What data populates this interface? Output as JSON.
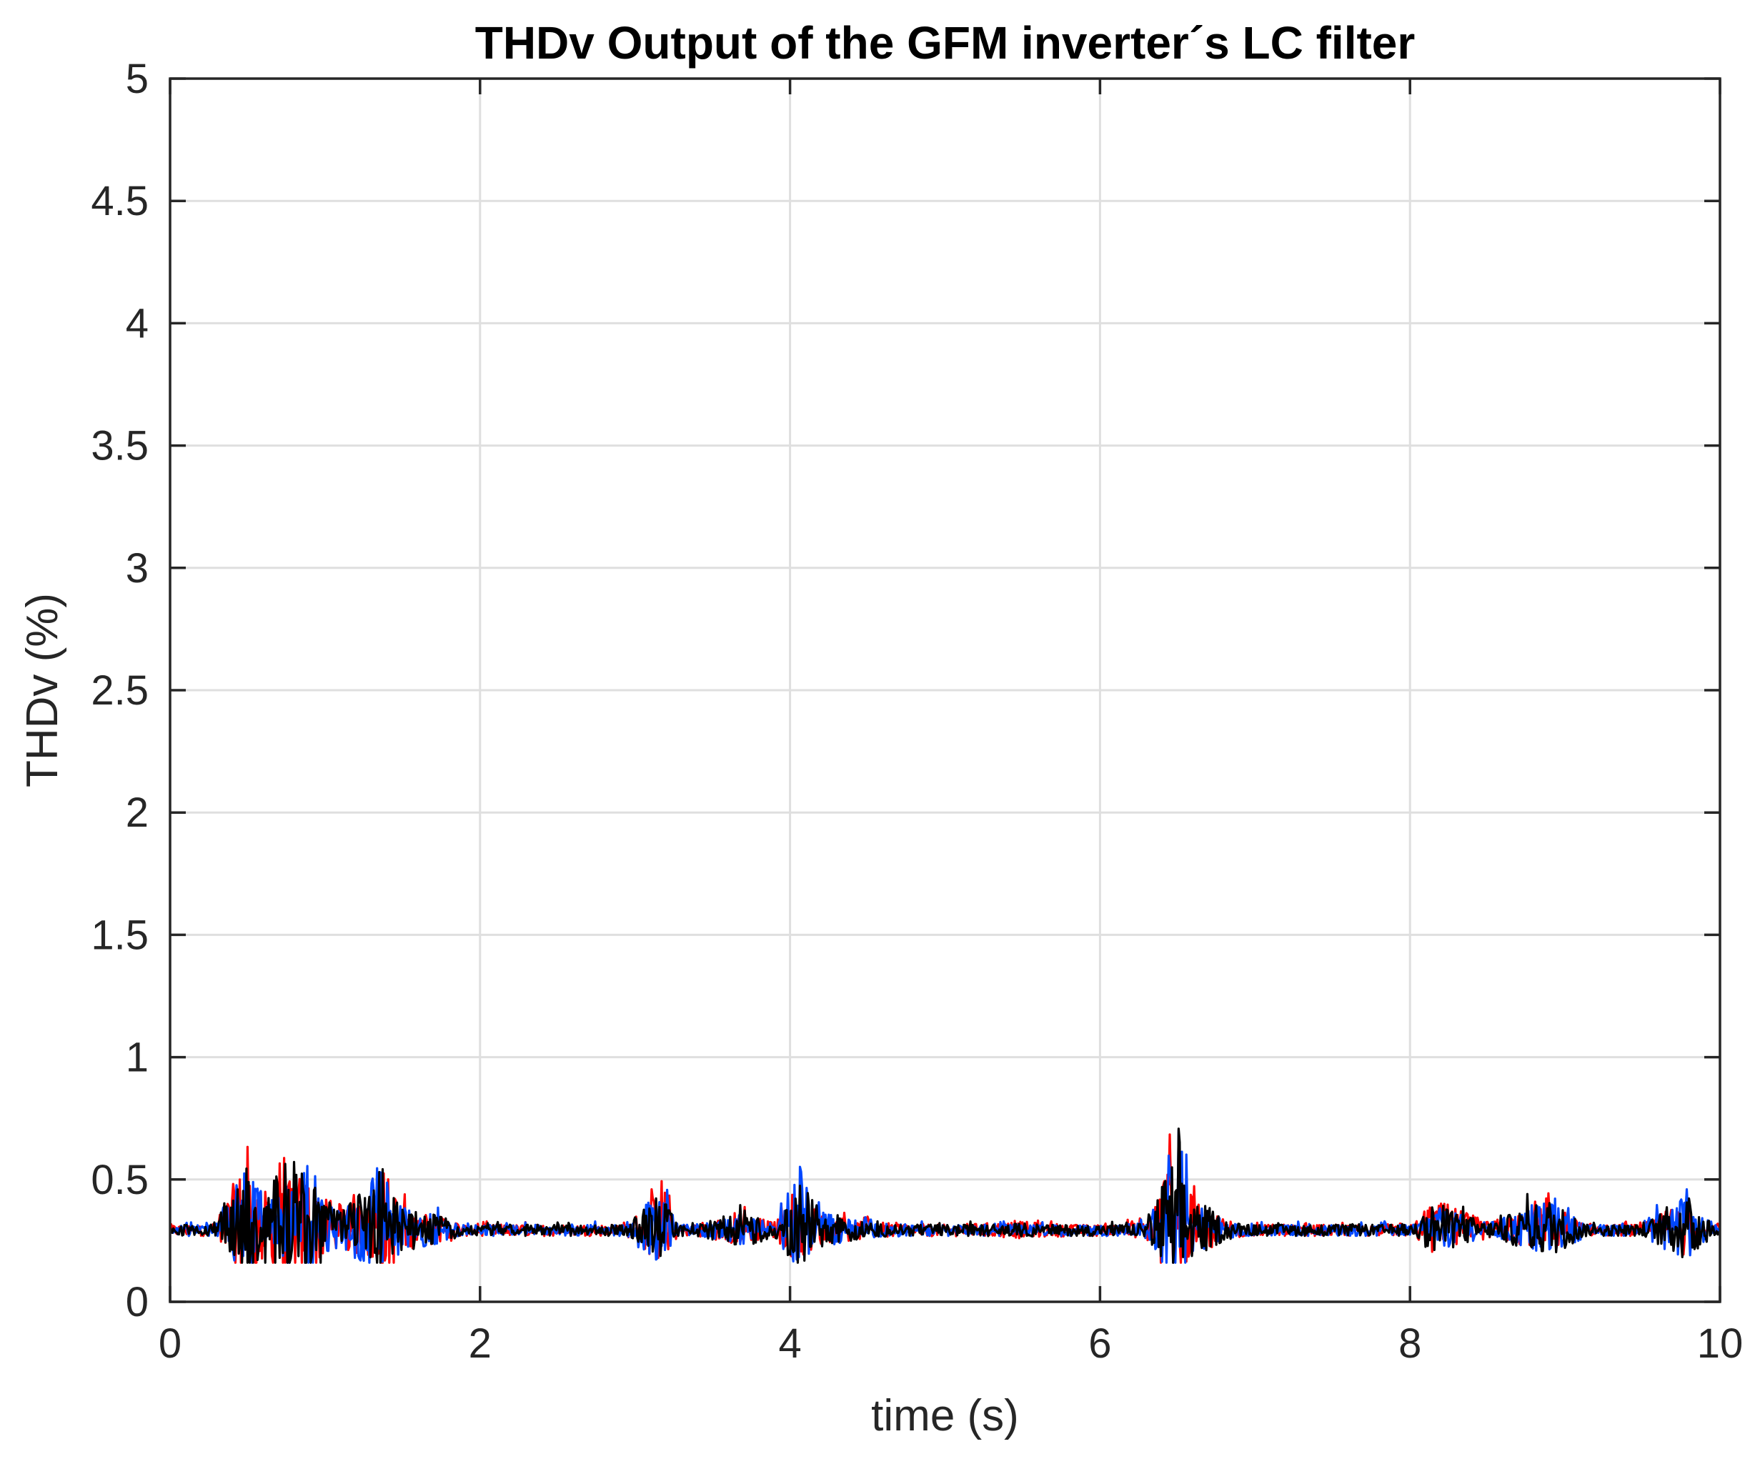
{
  "chart_data": {
    "type": "line",
    "title": "THDv Output of the GFM inverter´s LC filter",
    "xlabel": "time (s)",
    "ylabel": "THDv (%)",
    "xlim": [
      0,
      10
    ],
    "ylim": [
      0,
      5
    ],
    "xticks": [
      0,
      2,
      4,
      6,
      8,
      10
    ],
    "xtick_labels": [
      "0",
      "2",
      "4",
      "6",
      "8",
      "10"
    ],
    "yticks": [
      0,
      0.5,
      1,
      1.5,
      2,
      2.5,
      3,
      3.5,
      4,
      4.5,
      5
    ],
    "ytick_labels": [
      "0",
      "0.5",
      "1",
      "1.5",
      "2",
      "2.5",
      "3",
      "3.5",
      "4",
      "4.5",
      "5"
    ],
    "grid": true,
    "box": true,
    "series": [
      {
        "color": "#ff0000",
        "x": [
          0,
          0.25,
          0.5,
          0.6,
          0.75,
          0.9,
          1.0,
          1.1,
          1.3,
          1.35,
          1.5,
          1.65,
          1.8,
          2.0,
          2.3,
          2.6,
          2.9,
          3.1,
          3.15,
          3.3,
          3.7,
          3.9,
          4.05,
          4.2,
          4.5,
          5.0,
          5.5,
          6.0,
          6.3,
          6.45,
          6.5,
          6.6,
          6.8,
          7.0,
          7.5,
          8.0,
          8.15,
          8.5,
          8.9,
          9.2,
          9.5,
          9.75,
          9.85,
          10.0
        ],
        "y": [
          0.3,
          0.28,
          0.78,
          0.55,
          0.6,
          0.7,
          0.5,
          0.42,
          0.55,
          0.77,
          0.45,
          0.4,
          0.38,
          0.28,
          0.3,
          0.3,
          0.28,
          0.5,
          0.55,
          0.32,
          0.4,
          0.35,
          0.55,
          0.4,
          0.35,
          0.33,
          0.35,
          0.32,
          0.35,
          0.81,
          0.7,
          0.5,
          0.38,
          0.32,
          0.33,
          0.3,
          0.5,
          0.35,
          0.45,
          0.3,
          0.33,
          0.5,
          0.4,
          0.25
        ]
      },
      {
        "color": "#0047ff",
        "x": [
          0,
          0.25,
          0.5,
          0.6,
          0.75,
          0.9,
          1.0,
          1.1,
          1.3,
          1.35,
          1.5,
          1.65,
          1.8,
          2.0,
          2.3,
          2.6,
          2.9,
          3.1,
          3.15,
          3.3,
          3.7,
          3.9,
          4.05,
          4.2,
          4.5,
          5.0,
          5.5,
          6.0,
          6.3,
          6.45,
          6.5,
          6.6,
          6.8,
          7.0,
          7.5,
          8.0,
          8.15,
          8.5,
          8.9,
          9.2,
          9.5,
          9.75,
          9.85,
          10.0
        ],
        "y": [
          0.32,
          0.27,
          0.75,
          0.52,
          0.58,
          0.74,
          0.5,
          0.4,
          0.63,
          0.7,
          0.44,
          0.42,
          0.36,
          0.28,
          0.31,
          0.3,
          0.27,
          0.52,
          0.58,
          0.3,
          0.4,
          0.34,
          0.6,
          0.42,
          0.35,
          0.32,
          0.33,
          0.31,
          0.35,
          0.7,
          0.77,
          0.5,
          0.36,
          0.31,
          0.32,
          0.3,
          0.45,
          0.34,
          0.48,
          0.3,
          0.32,
          0.55,
          0.45,
          0.26
        ]
      },
      {
        "color": "#000000",
        "x": [
          0,
          0.25,
          0.5,
          0.6,
          0.75,
          0.9,
          1.0,
          1.1,
          1.3,
          1.35,
          1.5,
          1.65,
          1.8,
          2.0,
          2.3,
          2.6,
          2.9,
          3.1,
          3.15,
          3.3,
          3.7,
          3.9,
          4.05,
          4.2,
          4.5,
          5.0,
          5.5,
          6.0,
          6.3,
          6.45,
          6.5,
          6.6,
          6.8,
          7.0,
          7.5,
          8.0,
          8.15,
          8.5,
          8.9,
          9.2,
          9.5,
          9.75,
          9.85,
          10.0
        ],
        "y": [
          0.31,
          0.27,
          0.72,
          0.54,
          0.76,
          0.72,
          0.5,
          0.41,
          0.6,
          0.74,
          0.46,
          0.41,
          0.37,
          0.27,
          0.3,
          0.29,
          0.27,
          0.5,
          0.56,
          0.31,
          0.42,
          0.34,
          0.62,
          0.42,
          0.34,
          0.32,
          0.34,
          0.31,
          0.34,
          0.74,
          0.76,
          0.52,
          0.37,
          0.31,
          0.32,
          0.3,
          0.48,
          0.34,
          0.5,
          0.29,
          0.32,
          0.52,
          0.5,
          0.25
        ]
      }
    ]
  }
}
